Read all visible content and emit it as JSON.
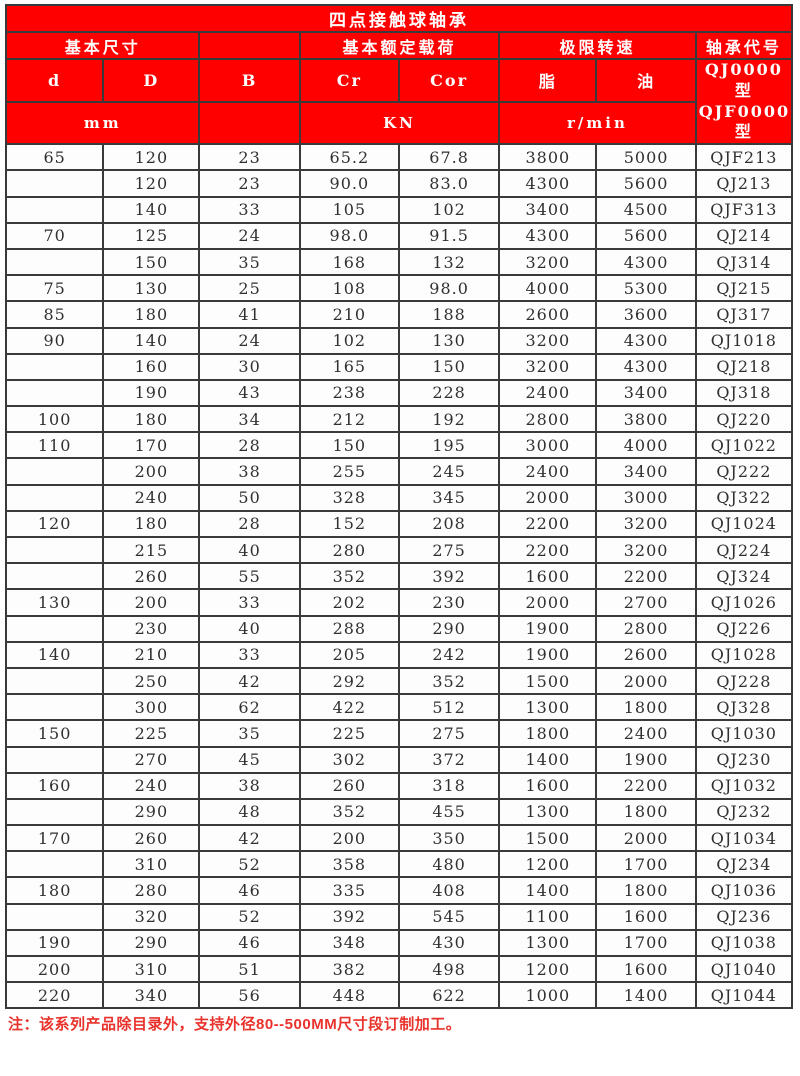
{
  "colors": {
    "header_bg": "#fe0000",
    "header_text": "#ffffff",
    "border": "#3a3a3a",
    "data_text": "#303030",
    "data_bg": "#fdfdfd",
    "note_text": "#e9322b"
  },
  "table": {
    "title": "四点接触球轴承",
    "group_headers": {
      "basic_dims": "基本尺寸",
      "rated_load": "基本额定载荷",
      "limit_speed": "极限转速",
      "bearing_code": "轴承代号"
    },
    "column_headers": {
      "d": "d",
      "D": "D",
      "B": "B",
      "Cr": "Cr",
      "Cor": "Cor",
      "grease": "脂",
      "oil": "油"
    },
    "code_header_lines": [
      "QJ0000型",
      "QJF0000",
      "型"
    ],
    "unit_headers": {
      "dims": "mm",
      "load": "KN",
      "speed": "r/min"
    },
    "rows": [
      [
        "65",
        "120",
        "23",
        "65.2",
        "67.8",
        "3800",
        "5000",
        "QJF213"
      ],
      [
        "",
        "120",
        "23",
        "90.0",
        "83.0",
        "4300",
        "5600",
        "QJ213"
      ],
      [
        "",
        "140",
        "33",
        "105",
        "102",
        "3400",
        "4500",
        "QJF313"
      ],
      [
        "70",
        "125",
        "24",
        "98.0",
        "91.5",
        "4300",
        "5600",
        "QJ214"
      ],
      [
        "",
        "150",
        "35",
        "168",
        "132",
        "3200",
        "4300",
        "QJ314"
      ],
      [
        "75",
        "130",
        "25",
        "108",
        "98.0",
        "4000",
        "5300",
        "QJ215"
      ],
      [
        "85",
        "180",
        "41",
        "210",
        "188",
        "2600",
        "3600",
        "QJ317"
      ],
      [
        "90",
        "140",
        "24",
        "102",
        "130",
        "3200",
        "4300",
        "QJ1018"
      ],
      [
        "",
        "160",
        "30",
        "165",
        "150",
        "3200",
        "4300",
        "QJ218"
      ],
      [
        "",
        "190",
        "43",
        "238",
        "228",
        "2400",
        "3400",
        "QJ318"
      ],
      [
        "100",
        "180",
        "34",
        "212",
        "192",
        "2800",
        "3800",
        "QJ220"
      ],
      [
        "110",
        "170",
        "28",
        "150",
        "195",
        "3000",
        "4000",
        "QJ1022"
      ],
      [
        "",
        "200",
        "38",
        "255",
        "245",
        "2400",
        "3400",
        "QJ222"
      ],
      [
        "",
        "240",
        "50",
        "328",
        "345",
        "2000",
        "3000",
        "QJ322"
      ],
      [
        "120",
        "180",
        "28",
        "152",
        "208",
        "2200",
        "3200",
        "QJ1024"
      ],
      [
        "",
        "215",
        "40",
        "280",
        "275",
        "2200",
        "3200",
        "QJ224"
      ],
      [
        "",
        "260",
        "55",
        "352",
        "392",
        "1600",
        "2200",
        "QJ324"
      ],
      [
        "130",
        "200",
        "33",
        "202",
        "230",
        "2000",
        "2700",
        "QJ1026"
      ],
      [
        "",
        "230",
        "40",
        "288",
        "290",
        "1900",
        "2800",
        "QJ226"
      ],
      [
        "140",
        "210",
        "33",
        "205",
        "242",
        "1900",
        "2600",
        "QJ1028"
      ],
      [
        "",
        "250",
        "42",
        "292",
        "352",
        "1500",
        "2000",
        "QJ228"
      ],
      [
        "",
        "300",
        "62",
        "422",
        "512",
        "1300",
        "1800",
        "QJ328"
      ],
      [
        "150",
        "225",
        "35",
        "225",
        "275",
        "1800",
        "2400",
        "QJ1030"
      ],
      [
        "",
        "270",
        "45",
        "302",
        "372",
        "1400",
        "1900",
        "QJ230"
      ],
      [
        "160",
        "240",
        "38",
        "260",
        "318",
        "1600",
        "2200",
        "QJ1032"
      ],
      [
        "",
        "290",
        "48",
        "352",
        "455",
        "1300",
        "1800",
        "QJ232"
      ],
      [
        "170",
        "260",
        "42",
        "200",
        "350",
        "1500",
        "2000",
        "QJ1034"
      ],
      [
        "",
        "310",
        "52",
        "358",
        "480",
        "1200",
        "1700",
        "QJ234"
      ],
      [
        "180",
        "280",
        "46",
        "335",
        "408",
        "1400",
        "1800",
        "QJ1036"
      ],
      [
        "",
        "320",
        "52",
        "392",
        "545",
        "1100",
        "1600",
        "QJ236"
      ],
      [
        "190",
        "290",
        "46",
        "348",
        "430",
        "1300",
        "1700",
        "QJ1038"
      ],
      [
        "200",
        "310",
        "51",
        "382",
        "498",
        "1200",
        "1600",
        "QJ1040"
      ],
      [
        "220",
        "340",
        "56",
        "448",
        "622",
        "1000",
        "1400",
        "QJ1044"
      ]
    ]
  },
  "footnote": "注：该系列产品除目录外，支持外径80--500MM尺寸段订制加工。"
}
